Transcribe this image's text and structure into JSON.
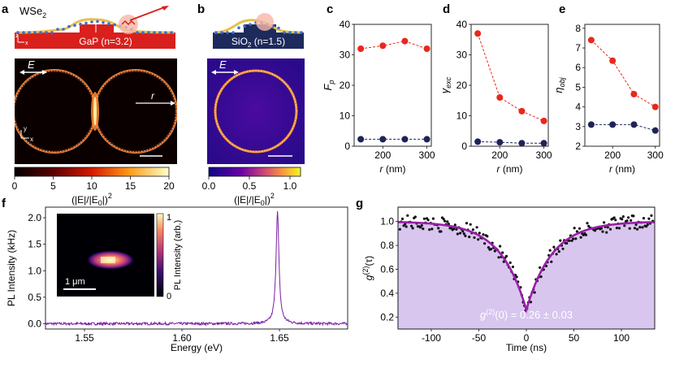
{
  "figure": {
    "panels": {
      "a": {
        "letter": "a",
        "material_top": "WSe",
        "material_sub": "2",
        "substrate": "GaP (n=3.2)",
        "axis_z": "z",
        "axis_x": "x",
        "field_label": "E",
        "radius_label": "r",
        "map_axis_y": "y",
        "map_axis_x": "x",
        "colorbar_ticks": [
          "0",
          "5",
          "10",
          "15",
          "20"
        ],
        "colorbar_label": "(|E|/|E",
        "colorbar_label_sub": "0",
        "colorbar_label_end": "|)",
        "colorbar_label_sup": "2"
      },
      "b": {
        "letter": "b",
        "substrate": "SiO",
        "substrate_sub": "2",
        "substrate_rest": " (n=1.5)",
        "field_label": "E",
        "colorbar_ticks": [
          "0.0",
          "0.5",
          "1.0"
        ],
        "colorbar_label": "(|E|/|E",
        "colorbar_label_sub": "0",
        "colorbar_label_end": "|)",
        "colorbar_label_sup": "2"
      },
      "c": {
        "letter": "c"
      },
      "d": {
        "letter": "d"
      },
      "e": {
        "letter": "e"
      },
      "f": {
        "letter": "f"
      },
      "g": {
        "letter": "g"
      }
    }
  },
  "colors": {
    "red": "#e8281c",
    "navy": "#1e2358",
    "purple": "#7a1fa0",
    "fill": "#d8c6ef",
    "gap_red": "#d9201c",
    "sio2": "#1d2a5c"
  },
  "chart_data": [
    {
      "id": "c",
      "type": "scatter",
      "xlabel": "r (nm)",
      "ylabel": "F",
      "ylabel_sub": "p",
      "x_ticks": [
        200,
        300
      ],
      "y_ticks": [
        0,
        10,
        20,
        30,
        40
      ],
      "xlim": [
        135,
        310
      ],
      "ylim": [
        0,
        40
      ],
      "series": [
        {
          "name": "GaP",
          "x": [
            150,
            200,
            250,
            300
          ],
          "values": [
            32,
            33,
            34.5,
            32
          ]
        },
        {
          "name": "SiO2",
          "x": [
            150,
            200,
            250,
            300
          ],
          "values": [
            2.3,
            2.3,
            2.3,
            2.3
          ]
        }
      ]
    },
    {
      "id": "d",
      "type": "scatter",
      "xlabel": "r (nm)",
      "ylabel": "γ",
      "ylabel_sub": "exc",
      "x_ticks": [
        200,
        300
      ],
      "y_ticks": [
        0,
        10,
        20,
        30,
        40
      ],
      "xlim": [
        135,
        310
      ],
      "ylim": [
        0,
        40
      ],
      "series": [
        {
          "name": "GaP",
          "x": [
            150,
            200,
            250,
            300
          ],
          "values": [
            37,
            16,
            11.5,
            8.3
          ]
        },
        {
          "name": "SiO2",
          "x": [
            150,
            200,
            250,
            300
          ],
          "values": [
            1.5,
            1.3,
            1.0,
            1.0
          ]
        }
      ]
    },
    {
      "id": "e",
      "type": "scatter",
      "xlabel": "r (nm)",
      "ylabel": "η",
      "ylabel_sub": "obj",
      "x_ticks": [
        200,
        300
      ],
      "y_ticks": [
        2,
        3,
        4,
        5,
        6,
        7,
        8
      ],
      "xlim": [
        135,
        310
      ],
      "ylim": [
        2,
        8.2
      ],
      "series": [
        {
          "name": "GaP",
          "x": [
            150,
            200,
            250,
            300
          ],
          "values": [
            7.4,
            6.35,
            4.65,
            4.0
          ]
        },
        {
          "name": "SiO2",
          "x": [
            150,
            200,
            250,
            300
          ],
          "values": [
            3.1,
            3.1,
            3.1,
            2.8
          ]
        }
      ]
    },
    {
      "id": "f",
      "type": "line",
      "xlabel": "Energy (eV)",
      "ylabel": "PL Intensity (kHz)",
      "x_ticks": [
        1.55,
        1.6,
        1.65
      ],
      "y_ticks": [
        0.0,
        0.5,
        1.0,
        1.5,
        2.0
      ],
      "xlim": [
        1.53,
        1.685
      ],
      "ylim": [
        -0.1,
        2.2
      ],
      "peak_energy": 1.649,
      "peak_height": 2.12,
      "peak_width": 0.0009,
      "inset": {
        "scalebar_label": "1 μm",
        "colorbar_ticks": [
          "1",
          "0"
        ],
        "colorbar_label": "PL Intensity (arb.)"
      }
    },
    {
      "id": "g",
      "type": "scatter",
      "xlabel": "Time (ns)",
      "ylabel": "g",
      "ylabel_sup": "(2)",
      "ylabel_end": "(τ)",
      "x_ticks": [
        -100,
        -50,
        0,
        50,
        100
      ],
      "y_ticks": [
        0.2,
        0.4,
        0.6,
        0.8,
        1.0
      ],
      "xlim": [
        -135,
        135
      ],
      "ylim": [
        0.1,
        1.12
      ],
      "fit": {
        "g0": 0.26,
        "tau": 27
      },
      "annotation": "g",
      "annotation_sup": "(2)",
      "annotation_rest": "(0) = 0.26 ± 0.03"
    }
  ]
}
